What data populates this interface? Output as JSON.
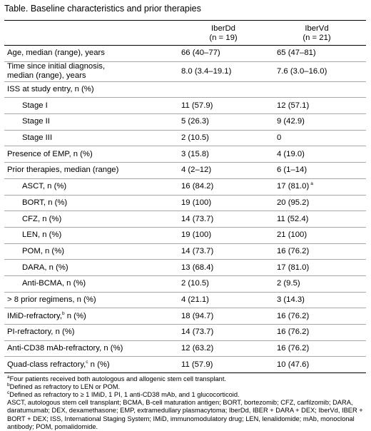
{
  "title": "Table. Baseline characteristics and prior therapies",
  "columns": [
    {
      "name": "IberDd",
      "n": "(n = 19)"
    },
    {
      "name": "IberVd",
      "n": "(n = 21)"
    }
  ],
  "rows": [
    {
      "label": "Age, median (range), years",
      "v1": "66 (40–77)",
      "v2": "65 (47–81)"
    },
    {
      "label": "Time since initial diagnosis,",
      "label2": "median (range), years",
      "v1": "8.0 (3.4–19.1)",
      "v2": "7.6 (3.0–16.0)"
    },
    {
      "label": "ISS at study entry, n (%)",
      "v1": "",
      "v2": ""
    },
    {
      "label": "Stage I",
      "v1": "11 (57.9)",
      "v2": "12 (57.1)"
    },
    {
      "label": "Stage II",
      "v1": "5 (26.3)",
      "v2": "9 (42.9)"
    },
    {
      "label": "Stage III",
      "v1": "2 (10.5)",
      "v2": "0"
    },
    {
      "label": "Presence of EMP, n (%)",
      "v1": "3 (15.8)",
      "v2": "4 (19.0)"
    },
    {
      "label": "Prior therapies, median (range)",
      "v1": "4 (2–12)",
      "v2": "6 (1–14)"
    },
    {
      "label": "ASCT, n (%)",
      "v1": "16 (84.2)",
      "v2": "17 (81.0)",
      "v2_sup": "a"
    },
    {
      "label": "BORT, n (%)",
      "v1": "19 (100)",
      "v2": "20 (95.2)"
    },
    {
      "label": "CFZ, n (%)",
      "v1": "14 (73.7)",
      "v2": "11 (52.4)"
    },
    {
      "label": "LEN, n (%)",
      "v1": "19 (100)",
      "v2": "21 (100)"
    },
    {
      "label": "POM, n (%)",
      "v1": "14 (73.7)",
      "v2": "16 (76.2)"
    },
    {
      "label": "DARA, n (%)",
      "v1": "13 (68.4)",
      "v2": "17 (81.0)"
    },
    {
      "label": "Anti-BCMA, n (%)",
      "v1": "2 (10.5)",
      "v2": "2 (9.5)"
    },
    {
      "label": "> 8 prior regimens, n (%)",
      "v1": "4 (21.1)",
      "v2": "3 (14.3)"
    },
    {
      "label": "IMiD-refractory,",
      "label_sup": "b",
      "label_post": " n (%)",
      "v1": "18 (94.7)",
      "v2": "16 (76.2)"
    },
    {
      "label": "PI-refractory, n (%)",
      "v1": "14 (73.7)",
      "v2": "16 (76.2)"
    },
    {
      "label": "Anti-CD38 mAb-refractory, n (%)",
      "v1": "12 (63.2)",
      "v2": "16 (76.2)"
    },
    {
      "label": "Quad-class refractory,",
      "label_sup": "c",
      "label_post": " n (%)",
      "v1": "11 (57.9)",
      "v2": "10 (47.6)"
    }
  ],
  "footnotes": [
    {
      "mark": "a",
      "text": "Four patients received both autologous and allogenic stem cell transplant."
    },
    {
      "mark": "b",
      "text": "Defined as refractory to LEN or POM."
    },
    {
      "mark": "c",
      "text": "Defined as refractory to ≥ 1 IMiD, 1 PI, 1 anti-CD38 mAb, and 1 glucocorticoid."
    }
  ],
  "abbreviations": "ASCT, autologous stem cell transplant; BCMA, B-cell maturation antigen; BORT, bortezomib; CFZ, carfilzomib; DARA, daratumumab; DEX, dexamethasone; EMP, extramedullary plasmacytoma; IberDd, IBER + DARA + DEX; IberVd, IBER + BORT + DEX; ISS, International Staging System; IMiD, immunomodulatory drug; LEN, lenalidomide; mAb, monoclonal antibody; POM, pomalidomide."
}
